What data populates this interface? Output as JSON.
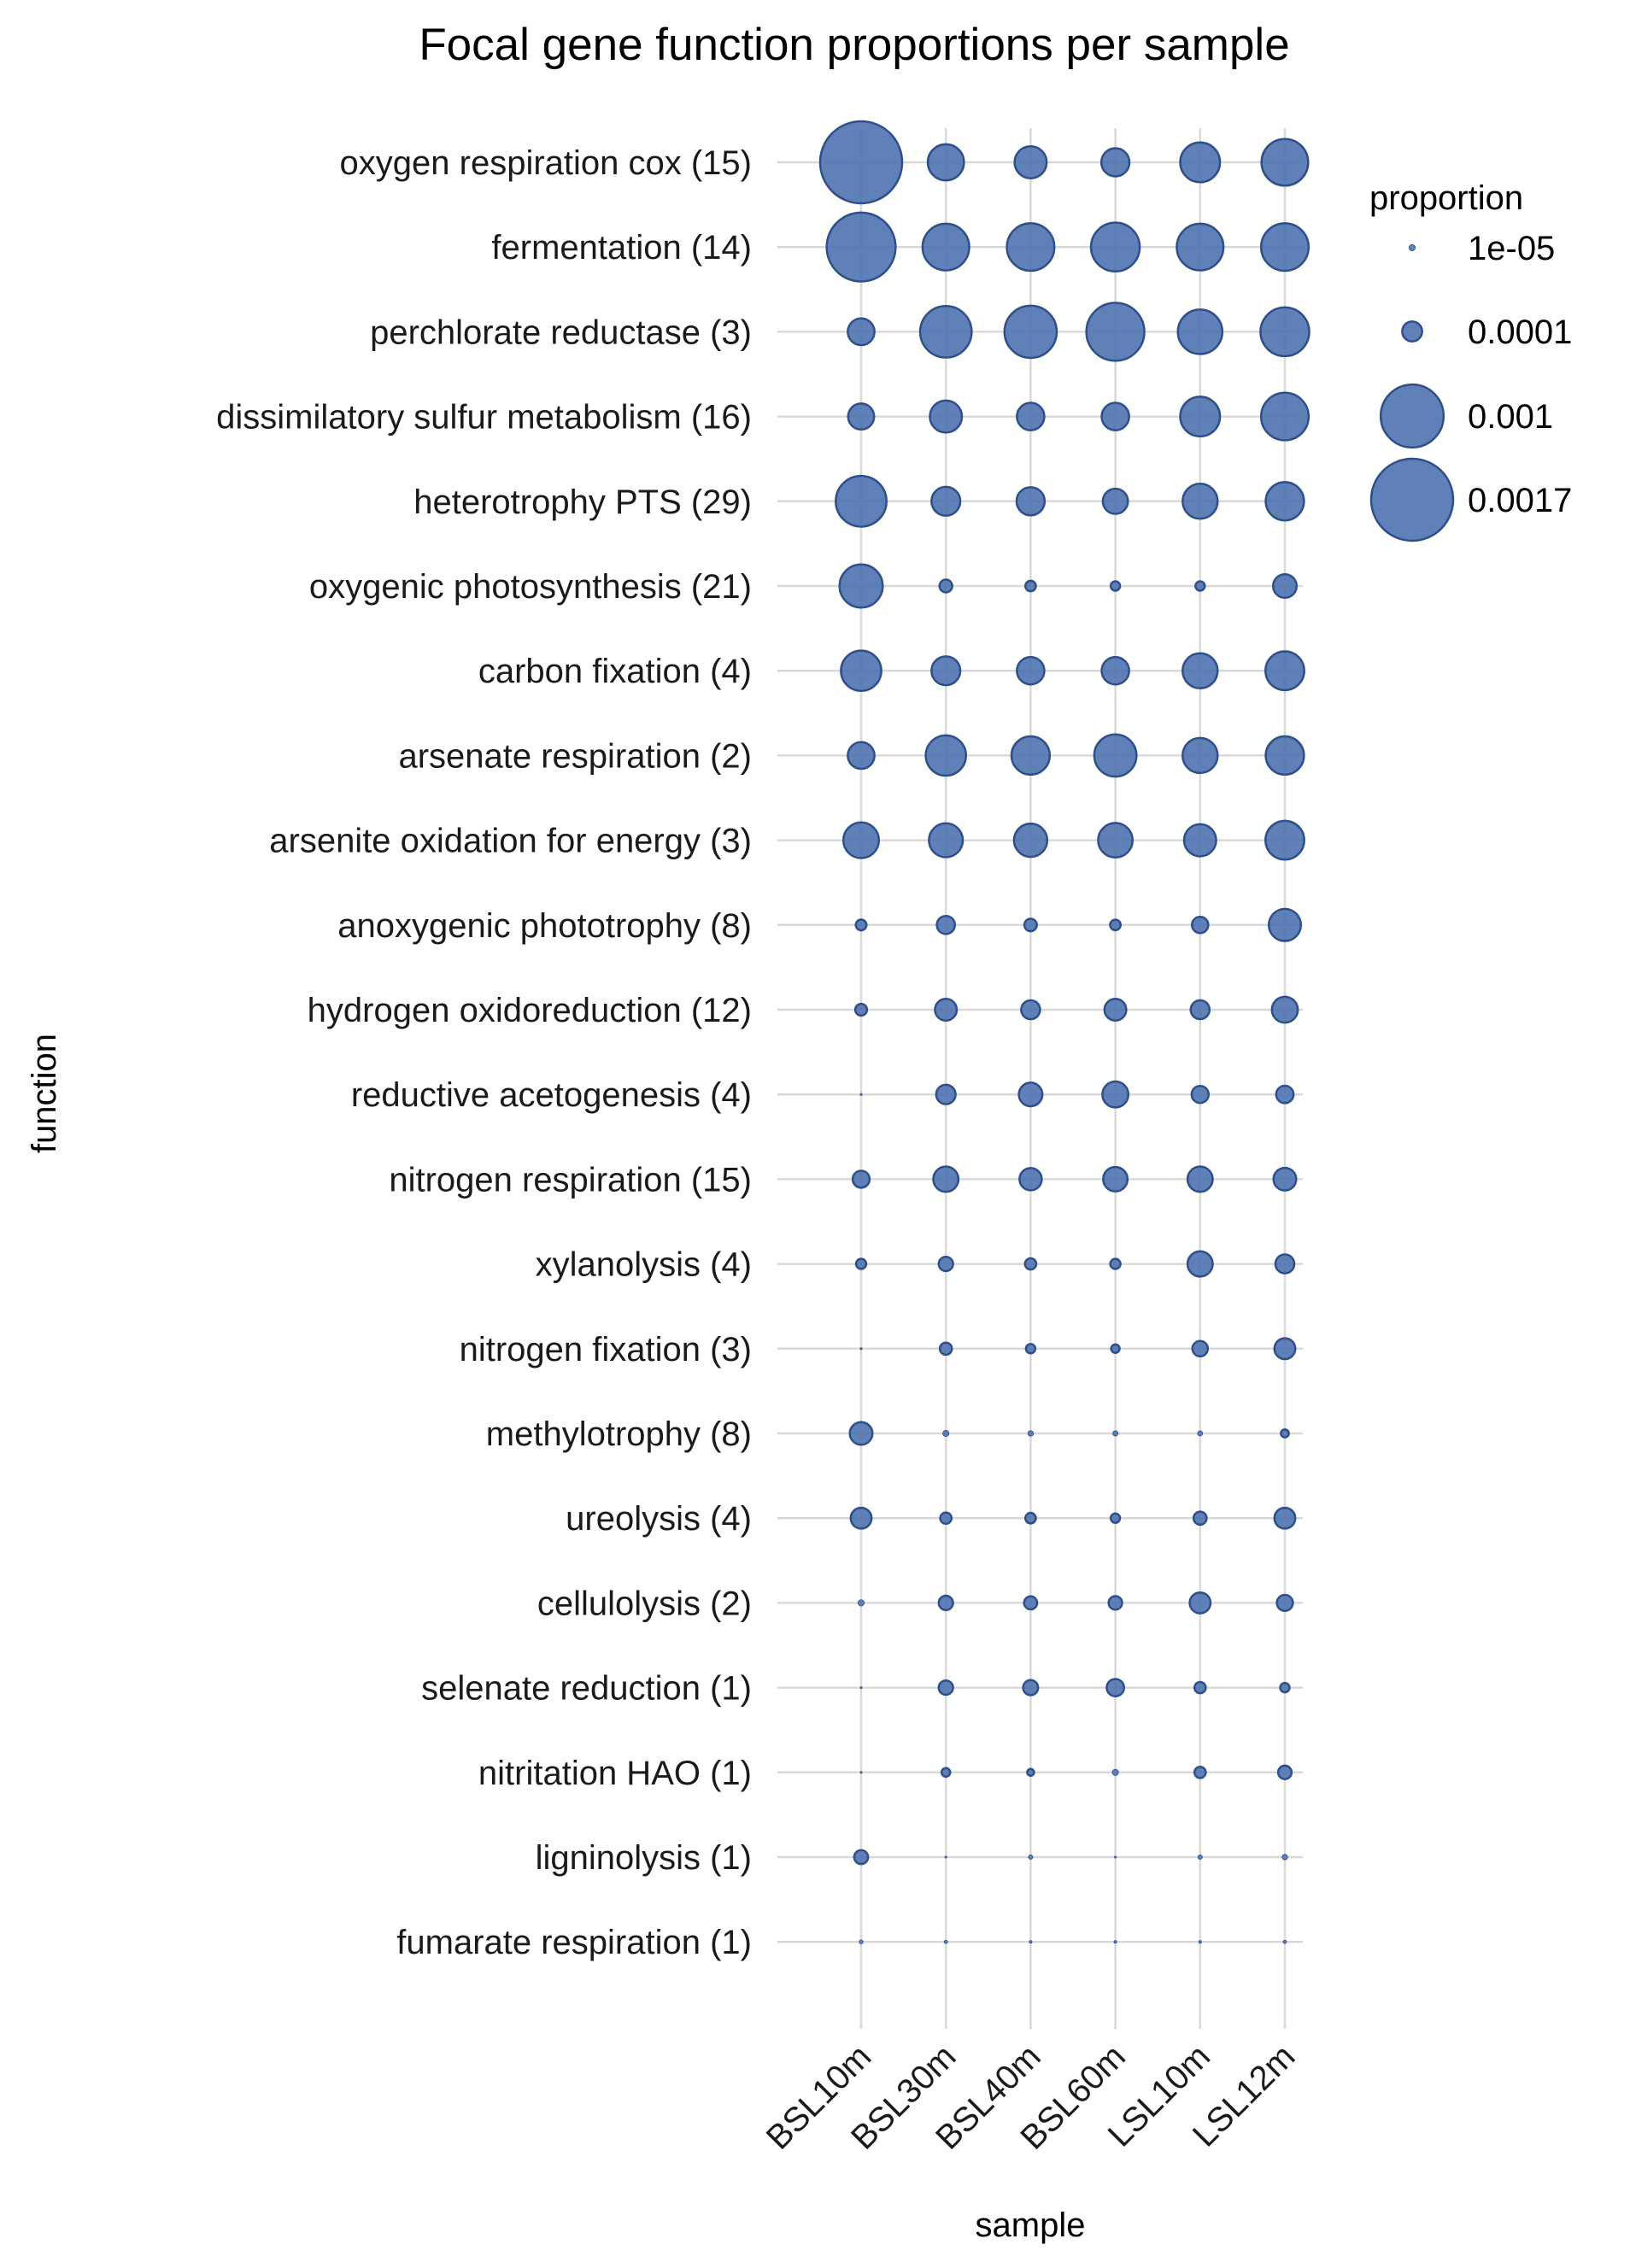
{
  "chart_data": {
    "type": "scatter",
    "title": "Focal gene function proportions per sample",
    "xlabel": "sample",
    "ylabel": "function",
    "samples": [
      "BSL10m",
      "BSL30m",
      "BSL40m",
      "BSL60m",
      "LSL10m",
      "LSL12m"
    ],
    "functions": [
      "oxygen respiration cox (15)",
      "fermentation (14)",
      "perchlorate reductase (3)",
      "dissimilatory sulfur metabolism (16)",
      "heterotrophy PTS (29)",
      "oxygenic photosynthesis (21)",
      "carbon fixation (4)",
      "arsenate respiration (2)",
      "arsenite oxidation for energy (3)",
      "anoxygenic phototrophy (8)",
      "hydrogen oxidoreduction (12)",
      "reductive acetogenesis (4)",
      "nitrogen respiration (15)",
      "xylanolysis (4)",
      "nitrogen fixation (3)",
      "methylotrophy (8)",
      "ureolysis (4)",
      "cellulolysis (2)",
      "selenate reduction (1)",
      "nitritation HAO (1)",
      "ligninolysis (1)",
      "fumarate respiration (1)"
    ],
    "values": [
      [
        0.0017,
        0.00033,
        0.00026,
        0.0002,
        0.0004,
        0.00055
      ],
      [
        0.0012,
        0.00055,
        0.00057,
        0.0006,
        0.00055,
        0.00057
      ],
      [
        0.00018,
        0.00067,
        0.00069,
        0.00085,
        0.0005,
        0.0006
      ],
      [
        0.00017,
        0.00026,
        0.00019,
        0.00019,
        0.0004,
        0.00057
      ],
      [
        0.00065,
        0.00021,
        0.0002,
        0.00016,
        0.00031,
        0.00037
      ],
      [
        0.00047,
        4.1e-05,
        2.8e-05,
        2.2e-05,
        2.2e-05,
        0.00014
      ],
      [
        0.00041,
        0.00021,
        0.00019,
        0.00019,
        0.00031,
        0.00038
      ],
      [
        0.00018,
        0.00041,
        0.00037,
        0.00045,
        0.00031,
        0.00037
      ],
      [
        0.00032,
        0.00029,
        0.00028,
        0.0003,
        0.00026,
        0.00038
      ],
      [
        2.9e-05,
        8.3e-05,
        3.9e-05,
        2.8e-05,
        6.7e-05,
        0.00026
      ],
      [
        3.5e-05,
        0.00012,
        9e-05,
        0.00012,
        9e-05,
        0.00017
      ],
      [
        1e-06,
        9.5e-05,
        0.00014,
        0.00017,
        7.3e-05,
        7.6e-05
      ],
      [
        7.3e-05,
        0.00016,
        0.000125,
        0.00015,
        0.00016,
        0.00013
      ],
      [
        2.6e-05,
        5.2e-05,
        3.2e-05,
        2.6e-05,
        0.00016,
        9e-05
      ],
      [
        1e-06,
        3.7e-05,
        2.2e-05,
        1.8e-05,
        6e-05,
        0.00011
      ],
      [
        0.00013,
        9.8e-06,
        7.8e-06,
        6.9e-06,
        6.5e-06,
        1.6e-05
      ],
      [
        0.00011,
        3.2e-05,
        2.8e-05,
        2.2e-05,
        4.3e-05,
        0.00011
      ],
      [
        9.8e-06,
        5.2e-05,
        4.3e-05,
        4.6e-05,
        0.00011,
        6.5e-05
      ],
      [
        9e-07,
        5.2e-05,
        5.7e-05,
        7.6e-05,
        3.2e-05,
        2.2e-05
      ],
      [
        9e-07,
        1.9e-05,
        1.2e-05,
        9.8e-06,
        3.2e-05,
        4.6e-05
      ],
      [
        4.9e-05,
        9e-07,
        4.9e-06,
        9e-07,
        4.9e-06,
        7.8e-06
      ],
      [
        3.9e-06,
        2.9e-06,
        1.9e-06,
        1.9e-06,
        1.9e-06,
        2.9e-06
      ]
    ],
    "size_legend": {
      "title": "proportion",
      "breaks": [
        1e-05,
        0.0001,
        0.001,
        0.0017
      ],
      "labels": [
        "1e-05",
        "0.0001",
        "0.001",
        "0.0017"
      ]
    },
    "point_color": "#4a6fad",
    "point_stroke": "#2e4f8a",
    "grid": true,
    "legend_position": "right"
  }
}
